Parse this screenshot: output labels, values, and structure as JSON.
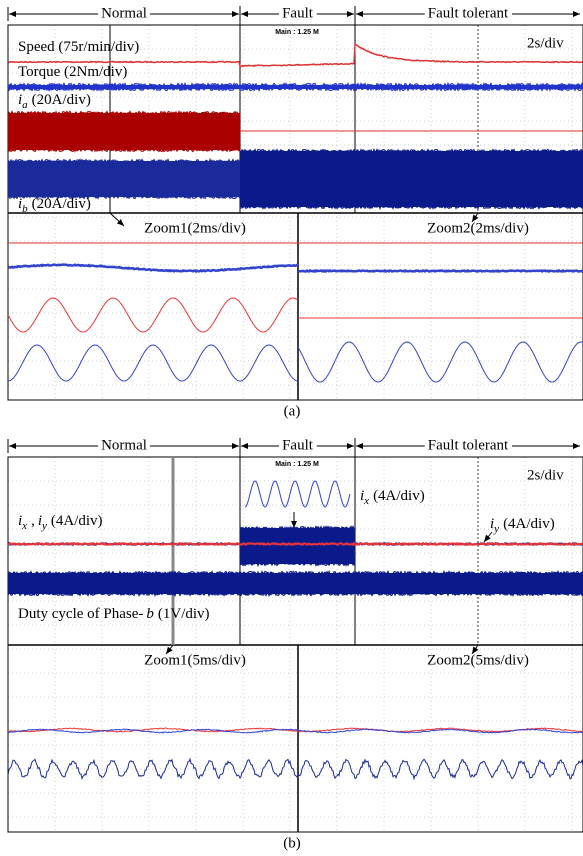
{
  "panel_a": {
    "segments": [
      "Normal",
      "Fault",
      "Fault tolerant"
    ],
    "scope_note": "Main : 1.25 M",
    "timebase": "2s/div",
    "traces": [
      [
        {
          "text": "Speed (75r/min/div)"
        }
      ],
      [
        {
          "text": "Torque (2Nm/div)"
        }
      ],
      [
        {
          "text": "i",
          "style": "italic"
        },
        {
          "text": "a",
          "style": "sub"
        },
        {
          "text": "(20A/div)"
        }
      ],
      [
        {
          "text": "i",
          "style": "italic"
        },
        {
          "text": "b",
          "style": "sub"
        },
        {
          "text": "(20A/div)"
        }
      ]
    ],
    "zooms": [
      "Zoom1(2ms/div)",
      "Zoom2(2ms/div)"
    ],
    "caption": "(a)"
  },
  "panel_b": {
    "segments": [
      "Normal",
      "Fault",
      "Fault tolerant"
    ],
    "scope_note": "Main : 1.25 M",
    "timebase": "2s/div",
    "traces": [
      [
        {
          "text": "i",
          "style": "italic"
        },
        {
          "text": "x",
          "style": "sub"
        },
        {
          "text": ","
        },
        {
          "text": "i",
          "style": "italic"
        },
        {
          "text": "y",
          "style": "sub"
        },
        {
          "text": "(4A/div)"
        }
      ],
      [
        {
          "text": "i",
          "style": "italic"
        },
        {
          "text": "x",
          "style": "sub"
        },
        {
          "text": "(4A/div)"
        }
      ],
      [
        {
          "text": "i",
          "style": "italic"
        },
        {
          "text": "y",
          "style": "sub"
        },
        {
          "text": "(4A/div)"
        }
      ],
      [
        {
          "text": "Duty cycle of Phase-"
        },
        {
          "text": "b",
          "style": "italic"
        },
        {
          "text": "(1V/div)"
        }
      ]
    ],
    "zooms": [
      "Zoom1(5ms/div)",
      "Zoom2(5ms/div)"
    ],
    "caption": "(b)"
  }
}
